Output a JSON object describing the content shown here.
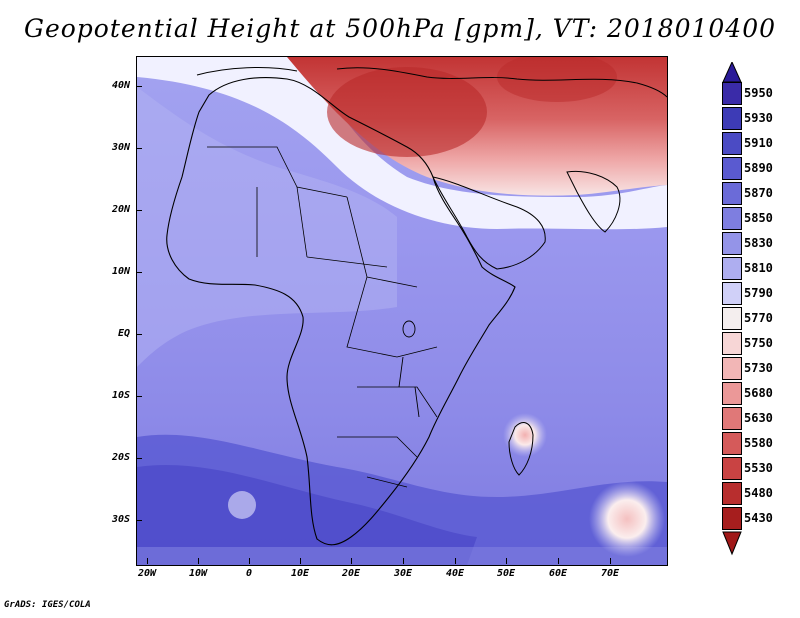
{
  "title": "Geopotential Height at 500hPa [gpm], VT: 2018010400",
  "footer": "GrADS: IGES/COLA",
  "map": {
    "lat_labels": [
      "40N",
      "30N",
      "20N",
      "10N",
      "EQ",
      "10S",
      "20S",
      "30S"
    ],
    "lon_labels": [
      "20W",
      "10W",
      "0",
      "10E",
      "20E",
      "30E",
      "40E",
      "50E",
      "60E",
      "70E"
    ],
    "field_colors": {
      "tropics_purple": "#9a97ee",
      "subtropic_lilac": "#b4b4f2",
      "south_band_indigo": "#5c5cd4",
      "deep_indigo": "#4a47c8",
      "mediterranean_red": "#c23434",
      "transition_pink": "#efa9a9",
      "white_band": "#f5f5ff"
    }
  },
  "colorbar": {
    "levels": [
      "5950",
      "5930",
      "5910",
      "5890",
      "5870",
      "5850",
      "5830",
      "5810",
      "5790",
      "5770",
      "5750",
      "5730",
      "5680",
      "5630",
      "5580",
      "5530",
      "5480",
      "5430"
    ],
    "colors": [
      "#3a2ba8",
      "#3d3bb6",
      "#4b4bc4",
      "#5a5ad0",
      "#6b6bd8",
      "#7e7ee0",
      "#9494e8",
      "#aeaef0",
      "#d0d0f8",
      "#f4eeee",
      "#f7d6d6",
      "#f2b6b6",
      "#eb9898",
      "#e07878",
      "#d55a5a",
      "#c94343",
      "#b82e2e",
      "#a61e1e"
    ],
    "top_arrow_color": "#2a1a98",
    "bottom_arrow_color": "#a01818"
  }
}
